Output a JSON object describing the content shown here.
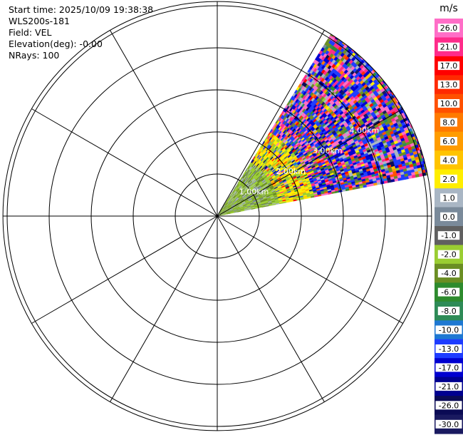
{
  "info": {
    "start_time": "Start time: 2025/10/09 19:38:38",
    "site": "WLS200s-181",
    "field": "Field: VEL",
    "elevation": "Elevation(deg): -0.00",
    "nrays": "NRays: 100"
  },
  "chart_data": {
    "type": "heatmap",
    "projection": "polar-ppi",
    "range_rings_km": [
      1.0,
      2.0,
      3.0,
      4.0
    ],
    "range_ring_labels": [
      "1.00km",
      "2.00km",
      "3.00km",
      "4.00km"
    ],
    "spoke_interval_deg": 30,
    "sector_azimuth_deg": [
      32,
      79
    ],
    "max_range_km": 5.1,
    "grid": true,
    "colorbar": {
      "unit_label": "m/s",
      "placement": "right",
      "ticks": [
        "26.0",
        "21.0",
        "17.0",
        "13.0",
        "10.0",
        "8.0",
        "6.0",
        "4.0",
        "2.0",
        "1.0",
        "0.0",
        "-1.0",
        "-2.0",
        "-4.0",
        "-6.0",
        "-8.0",
        "-10.0",
        "-13.0",
        "-17.0",
        "-21.0",
        "-26.0",
        "-30.0"
      ],
      "colors": [
        "#ff6ec7",
        "#ff2b8a",
        "#ff0000",
        "#ff2a00",
        "#ff5000",
        "#ff7a00",
        "#ff9c00",
        "#ffc400",
        "#ffee00",
        "#a9b6c4",
        "#7a8a9a",
        "#606060",
        "#9acd32",
        "#6b8e23",
        "#2e8b2e",
        "#2e8b57",
        "#1e78d2",
        "#1e3cff",
        "#0000d0",
        "#000090",
        "#0b0b55",
        "#1a1a60"
      ]
    }
  }
}
